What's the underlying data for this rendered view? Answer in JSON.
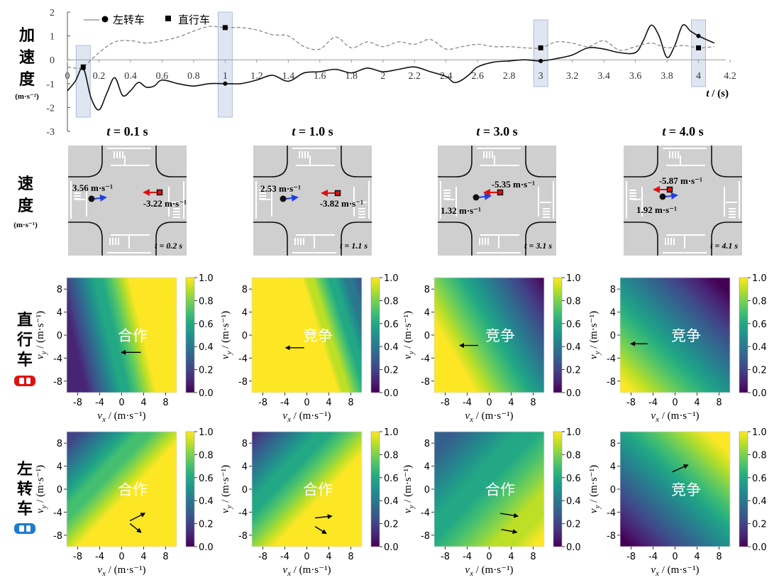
{
  "labels": {
    "accel_title": "加速度",
    "accel_unit": "(m·s⁻²)",
    "speed_title": "速度",
    "speed_unit": "(m·s⁻¹)",
    "straight_title": "直行车",
    "left_title": "左转车",
    "t_axis_label": "t / (s)",
    "vx_label": "vx / (m·s⁻¹)",
    "vy_label": "vy / (m·s⁻¹)"
  },
  "colors": {
    "left_turn": "#1f7bd0",
    "straight": "#e01010",
    "band": "#c9d6ea",
    "road": "#cfcfcf"
  },
  "chart_data": [
    {
      "type": "line",
      "x_label": "t / (s)",
      "xlim": [
        0,
        4.2
      ],
      "ylim": [
        -3,
        2
      ],
      "x_ticks": [
        0,
        0.2,
        0.4,
        0.6,
        0.8,
        1,
        1.2,
        1.4,
        1.6,
        1.8,
        2,
        2.2,
        2.4,
        2.6,
        2.8,
        3,
        3.2,
        3.4,
        3.6,
        3.8,
        4,
        4.2
      ],
      "y_ticks": [
        2,
        1,
        0,
        -1,
        -2,
        -3
      ],
      "highlight_times": [
        0.1,
        1.0,
        3.0,
        4.0
      ],
      "series": [
        {
          "name": "左转车",
          "style": "solid",
          "marker": "circle",
          "x": [
            0,
            0.05,
            0.1,
            0.15,
            0.2,
            0.25,
            0.3,
            0.35,
            0.4,
            0.45,
            0.5,
            0.55,
            0.6,
            0.7,
            0.8,
            0.9,
            1.0,
            1.1,
            1.2,
            1.3,
            1.4,
            1.5,
            1.6,
            1.7,
            1.8,
            1.9,
            2.0,
            2.1,
            2.2,
            2.3,
            2.4,
            2.45,
            2.5,
            2.55,
            2.6,
            2.7,
            2.8,
            2.9,
            3.0,
            3.1,
            3.2,
            3.3,
            3.4,
            3.5,
            3.6,
            3.65,
            3.7,
            3.75,
            3.8,
            3.85,
            3.9,
            3.95,
            4.0,
            4.1
          ],
          "y": [
            -1.3,
            -0.9,
            -0.35,
            -1.6,
            -2.1,
            -1.4,
            -0.75,
            -1.5,
            -1.3,
            -0.95,
            -1.15,
            -1.1,
            -0.85,
            -1.0,
            -1.1,
            -1.0,
            -1.0,
            -1.0,
            -0.85,
            -0.65,
            -0.9,
            -0.55,
            -0.5,
            -0.4,
            -0.55,
            -0.35,
            -0.5,
            -0.4,
            -0.3,
            -0.5,
            -0.7,
            -0.95,
            -0.85,
            -0.6,
            -0.3,
            -0.1,
            -0.05,
            0,
            -0.05,
            0.05,
            0.2,
            0.5,
            0.45,
            0.3,
            0.3,
            0.8,
            1.45,
            1.0,
            0.1,
            0.6,
            1.45,
            1.2,
            1.0,
            0.7
          ],
          "markers": [
            {
              "x": 0.1,
              "y": -0.35
            },
            {
              "x": 1.0,
              "y": -1.0
            },
            {
              "x": 3.0,
              "y": -0.05
            },
            {
              "x": 4.0,
              "y": 1.0
            }
          ]
        },
        {
          "name": "直行车",
          "style": "dashed",
          "marker": "square",
          "x": [
            0,
            0.05,
            0.1,
            0.2,
            0.3,
            0.4,
            0.5,
            0.6,
            0.7,
            0.8,
            0.9,
            1.0,
            1.1,
            1.2,
            1.3,
            1.4,
            1.5,
            1.6,
            1.7,
            1.8,
            1.9,
            2.0,
            2.1,
            2.2,
            2.3,
            2.4,
            2.5,
            2.6,
            2.7,
            2.8,
            2.9,
            3.0,
            3.1,
            3.2,
            3.3,
            3.4,
            3.5,
            3.6,
            3.7,
            3.8,
            3.9,
            4.0,
            4.1
          ],
          "y": [
            -0.3,
            -0.35,
            -0.3,
            0.3,
            0.75,
            0.8,
            0.7,
            0.8,
            0.95,
            1.2,
            1.4,
            1.35,
            1.35,
            1.25,
            1.05,
            1.0,
            0.55,
            0.45,
            0.95,
            0.5,
            0.75,
            0.55,
            0.75,
            0.65,
            0.85,
            0.45,
            0.55,
            0.65,
            0.55,
            0.55,
            0.5,
            0.5,
            0.75,
            0.7,
            0.55,
            0.8,
            0.4,
            0.55,
            0.7,
            0.5,
            0.6,
            0.5,
            0.55
          ],
          "markers": [
            {
              "x": 0.1,
              "y": -0.3
            },
            {
              "x": 1.0,
              "y": 1.35
            },
            {
              "x": 3.0,
              "y": 0.5
            },
            {
              "x": 4.0,
              "y": 0.5
            }
          ]
        }
      ]
    },
    {
      "type": "heatmap",
      "panels": [
        {
          "t_title": "t = 0.1 s",
          "scene_time": "t = 0.2 s",
          "turn_speed": "3.56 m·s⁻¹",
          "straight_speed": "-3.22 m·s⁻¹"
        },
        {
          "t_title": "t = 1.0 s",
          "scene_time": "t = 1.1 s",
          "turn_speed": "2.53 m·s⁻¹",
          "straight_speed": "-3.82 m·s⁻¹"
        },
        {
          "t_title": "t = 3.0 s",
          "scene_time": "t = 3.1 s",
          "turn_speed": "1.32 m·s⁻¹",
          "straight_speed": "-5.35 m·s⁻¹"
        },
        {
          "t_title": "t = 4.0 s",
          "scene_time": "t = 4.1 s",
          "turn_speed": "1.92 m·s⁻¹",
          "straight_speed": "-5.87 m·s⁻¹"
        }
      ],
      "xlim": [
        -10,
        10
      ],
      "ylim": [
        -10,
        10
      ],
      "ticks": [
        -8,
        -4,
        0,
        4,
        8
      ],
      "colorbar_ticks": [
        "1.0",
        "0.8",
        "0.6",
        "0.4",
        "0.2",
        "0.0"
      ],
      "straight_row": [
        {
          "label": "合作",
          "arrows": [
            [
              [
                3.5,
                -3.0
              ],
              [
                0,
                -3.0
              ]
            ]
          ]
        },
        {
          "label": "竞争",
          "arrows": [
            [
              [
                -0.5,
                -2.2
              ],
              [
                -3.8,
                -2.2
              ]
            ]
          ]
        },
        {
          "label": "竞争",
          "arrows": [
            [
              [
                -2.0,
                -1.8
              ],
              [
                -5.3,
                -1.8
              ]
            ]
          ]
        },
        {
          "label": "竞争",
          "arrows": [
            [
              [
                -5.0,
                -1.5
              ],
              [
                -8.0,
                -1.5
              ]
            ]
          ]
        }
      ],
      "left_row": [
        {
          "label": "合作",
          "arrows": [
            [
              [
                1.5,
                -5.5
              ],
              [
                4.2,
                -4.2
              ]
            ],
            [
              [
                1.5,
                -6.0
              ],
              [
                3.5,
                -7.5
              ]
            ]
          ]
        },
        {
          "label": "合作",
          "arrows": [
            [
              [
                1.5,
                -5.0
              ],
              [
                4.5,
                -4.7
              ]
            ],
            [
              [
                1.5,
                -6.5
              ],
              [
                3.5,
                -7.7
              ]
            ]
          ]
        },
        {
          "label": "合作",
          "arrows": [
            [
              [
                2.0,
                -4.2
              ],
              [
                5.2,
                -4.7
              ]
            ],
            [
              [
                2.2,
                -7.0
              ],
              [
                5.0,
                -7.5
              ]
            ]
          ]
        },
        {
          "label": "竞争",
          "arrows": [
            [
              [
                -0.5,
                3.0
              ],
              [
                2.3,
                4.2
              ]
            ]
          ]
        }
      ]
    }
  ]
}
